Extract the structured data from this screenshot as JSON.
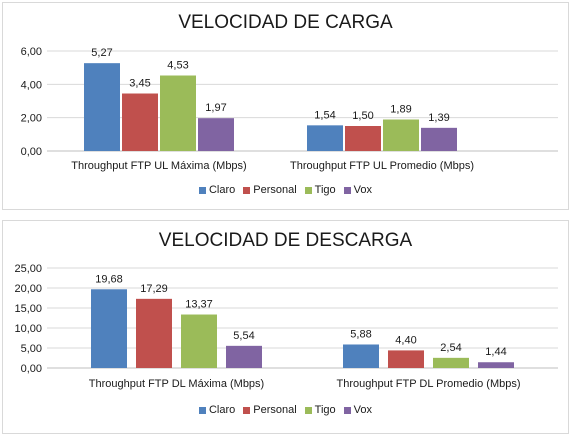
{
  "chart_data": [
    {
      "type": "bar",
      "title": "VELOCIDAD DE CARGA",
      "categories": [
        "Throughput FTP UL Máxima (Mbps)",
        "Throughput FTP UL Promedio (Mbps)"
      ],
      "series": [
        {
          "name": "Claro",
          "color": "#4F81BD",
          "values": [
            5.27,
            1.54
          ],
          "labels": [
            "5,27",
            "1,54"
          ]
        },
        {
          "name": "Personal",
          "color": "#C0504D",
          "values": [
            3.45,
            1.5
          ],
          "labels": [
            "3,45",
            "1,50"
          ]
        },
        {
          "name": "Tigo",
          "color": "#9BBB59",
          "values": [
            4.53,
            1.89
          ],
          "labels": [
            "4,53",
            "1,89"
          ]
        },
        {
          "name": "Vox",
          "color": "#8064A2",
          "values": [
            1.97,
            1.39
          ],
          "labels": [
            "1,97",
            "1,39"
          ]
        }
      ],
      "ylim": [
        0,
        6
      ],
      "yticks": [
        0,
        2,
        4,
        6
      ],
      "ytick_labels": [
        "0,00",
        "2,00",
        "4,00",
        "6,00"
      ],
      "grid": true,
      "legend": "bottom"
    },
    {
      "type": "bar",
      "title": "VELOCIDAD DE DESCARGA",
      "categories": [
        "Throughput FTP DL Máxima (Mbps)",
        "Throughput FTP DL Promedio (Mbps)"
      ],
      "series": [
        {
          "name": "Claro",
          "color": "#4F81BD",
          "values": [
            19.68,
            5.88
          ],
          "labels": [
            "19,68",
            "5,88"
          ]
        },
        {
          "name": "Personal",
          "color": "#C0504D",
          "values": [
            17.29,
            4.4
          ],
          "labels": [
            "17,29",
            "4,40"
          ]
        },
        {
          "name": "Tigo",
          "color": "#9BBB59",
          "values": [
            13.37,
            2.54
          ],
          "labels": [
            "13,37",
            "2,54"
          ]
        },
        {
          "name": "Vox",
          "color": "#8064A2",
          "values": [
            5.54,
            1.44
          ],
          "labels": [
            "5,54",
            "1,44"
          ]
        }
      ],
      "ylim": [
        0,
        25
      ],
      "yticks": [
        0,
        5,
        10,
        15,
        20,
        25
      ],
      "ytick_labels": [
        "0,00",
        "5,00",
        "10,00",
        "15,00",
        "20,00",
        "25,00"
      ],
      "grid": true,
      "legend": "bottom"
    }
  ]
}
